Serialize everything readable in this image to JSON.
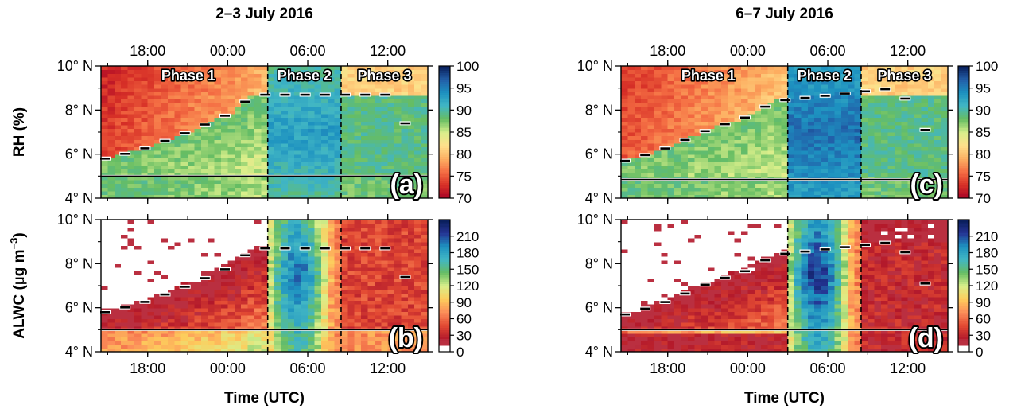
{
  "figure": {
    "titles": [
      "2–3 July 2016",
      "6–7 July 2016"
    ],
    "row_labels": {
      "rh": "RH (%)",
      "alwc_prefix": "ALWC (",
      "alwc_mu": "μ",
      "alwc_unit": "g m",
      "alwc_exp": "−3",
      "alwc_suffix": ")"
    },
    "x_axis_label": "Time (UTC)",
    "phase_labels": [
      "Phase 1",
      "Phase 2",
      "Phase 3"
    ]
  },
  "colors": {
    "rh_scale": [
      "#a50026",
      "#d73027",
      "#f46d43",
      "#fdae61",
      "#fee08b",
      "#d9ef8b",
      "#66bd63",
      "#41b6c4",
      "#1d91c0",
      "#225ea8",
      "#081d58"
    ],
    "alwc_scale": [
      "#ffffff",
      "#b2182b",
      "#e34a33",
      "#fc8d59",
      "#fdcc5c",
      "#d9ef8b",
      "#66bd63",
      "#41b6c4",
      "#1d91c0",
      "#253494",
      "#081d58"
    ],
    "dashed_lines": "#000000",
    "track_markers": "#ffffff"
  },
  "chart_data": [
    {
      "type": "heatmap",
      "panel": "a",
      "field": "RH",
      "unit": "%",
      "title": "2–3 July 2016",
      "ylabel": "RH (%)",
      "xlabel": "",
      "x_ticks": [
        "18:00",
        "00:00",
        "06:00",
        "12:00"
      ],
      "x_tick_position": "top",
      "x_range_utc": [
        "2 July 14:30",
        "3 July 15:00"
      ],
      "y_ticks": [
        "4° N",
        "6° N",
        "8° N",
        "10° N"
      ],
      "ylim_deg_n": [
        4,
        10
      ],
      "colorbar": {
        "ticks": [
          "70",
          "75",
          "80",
          "85",
          "90",
          "95",
          "100"
        ],
        "range": [
          70,
          100
        ]
      },
      "phase_boundaries_utc": [
        "03:00",
        "08:30"
      ],
      "phases": [
        "Phase 1",
        "Phase 2",
        "Phase 3"
      ],
      "horizontal_line_deg_n": 5.0,
      "front_latitude_deg_n": [
        [
          15,
          5.8
        ],
        [
          18,
          6.3
        ],
        [
          21,
          7.0
        ],
        [
          0,
          7.8
        ],
        [
          2,
          8.7
        ],
        [
          12,
          8.7
        ],
        [
          13,
          7.7
        ],
        [
          14,
          6.7
        ],
        [
          15,
          6.2
        ]
      ],
      "values_summary": {
        "north_of_front_phase1": 75,
        "south_of_front": 88,
        "phase2_core": 93,
        "near_4N": 87
      }
    },
    {
      "type": "heatmap",
      "panel": "b",
      "field": "ALWC",
      "unit": "μg m−3",
      "title": "",
      "ylabel": "ALWC (μg m−3)",
      "xlabel": "Time (UTC)",
      "x_ticks": [
        "18:00",
        "00:00",
        "06:00",
        "12:00"
      ],
      "x_tick_position": "bottom",
      "y_ticks": [
        "4° N",
        "6° N",
        "8° N",
        "10° N"
      ],
      "ylim_deg_n": [
        4,
        10
      ],
      "colorbar": {
        "ticks": [
          "0",
          "30",
          "60",
          "90",
          "120",
          "150",
          "180",
          "210"
        ],
        "range": [
          0,
          240
        ]
      },
      "phase_boundaries_utc": [
        "03:00",
        "08:30"
      ],
      "horizontal_line_deg_n": 5.0,
      "values_summary": {
        "north_of_front_phase1": 0,
        "near_front": 30,
        "phase2_core": 130,
        "phase3": 50
      }
    },
    {
      "type": "heatmap",
      "panel": "c",
      "field": "RH",
      "unit": "%",
      "title": "6–7 July 2016",
      "ylabel": "",
      "xlabel": "",
      "x_ticks": [
        "18:00",
        "00:00",
        "06:00",
        "12:00"
      ],
      "x_tick_position": "top",
      "y_ticks": [
        "4° N",
        "6° N",
        "8° N",
        "10° N"
      ],
      "ylim_deg_n": [
        4,
        10
      ],
      "colorbar": {
        "ticks": [
          "70",
          "75",
          "80",
          "85",
          "90",
          "95",
          "100"
        ],
        "range": [
          70,
          100
        ]
      },
      "phase_boundaries_utc": [
        "03:00",
        "08:30"
      ],
      "phases": [
        "Phase 1",
        "Phase 2",
        "Phase 3"
      ],
      "horizontal_line_deg_n": 4.85,
      "front_latitude_deg_n": [
        [
          15,
          5.7
        ],
        [
          18,
          6.3
        ],
        [
          21,
          7.1
        ],
        [
          0,
          7.7
        ],
        [
          2,
          8.4
        ],
        [
          11,
          9.0
        ],
        [
          12,
          8.4
        ],
        [
          13,
          7.4
        ],
        [
          14,
          6.4
        ],
        [
          15,
          6.0
        ]
      ],
      "values_summary": {
        "north_of_front_phase1": 76,
        "south_of_front": 88,
        "phase2_core": 96,
        "near_4N": 88
      }
    },
    {
      "type": "heatmap",
      "panel": "d",
      "field": "ALWC",
      "unit": "μg m−3",
      "title": "",
      "ylabel": "",
      "xlabel": "Time (UTC)",
      "x_ticks": [
        "18:00",
        "00:00",
        "06:00",
        "12:00"
      ],
      "x_tick_position": "bottom",
      "y_ticks": [
        "4° N",
        "6° N",
        "8° N",
        "10° N"
      ],
      "ylim_deg_n": [
        4,
        10
      ],
      "colorbar": {
        "ticks": [
          "0",
          "30",
          "60",
          "90",
          "120",
          "150",
          "180",
          "210"
        ],
        "range": [
          0,
          240
        ]
      },
      "phase_boundaries_utc": [
        "03:00",
        "08:30"
      ],
      "horizontal_line_deg_n": 5.0,
      "values_summary": {
        "north_of_front_phase1": 0,
        "near_front": 35,
        "phase2_core": 150,
        "phase3": 45
      }
    }
  ]
}
